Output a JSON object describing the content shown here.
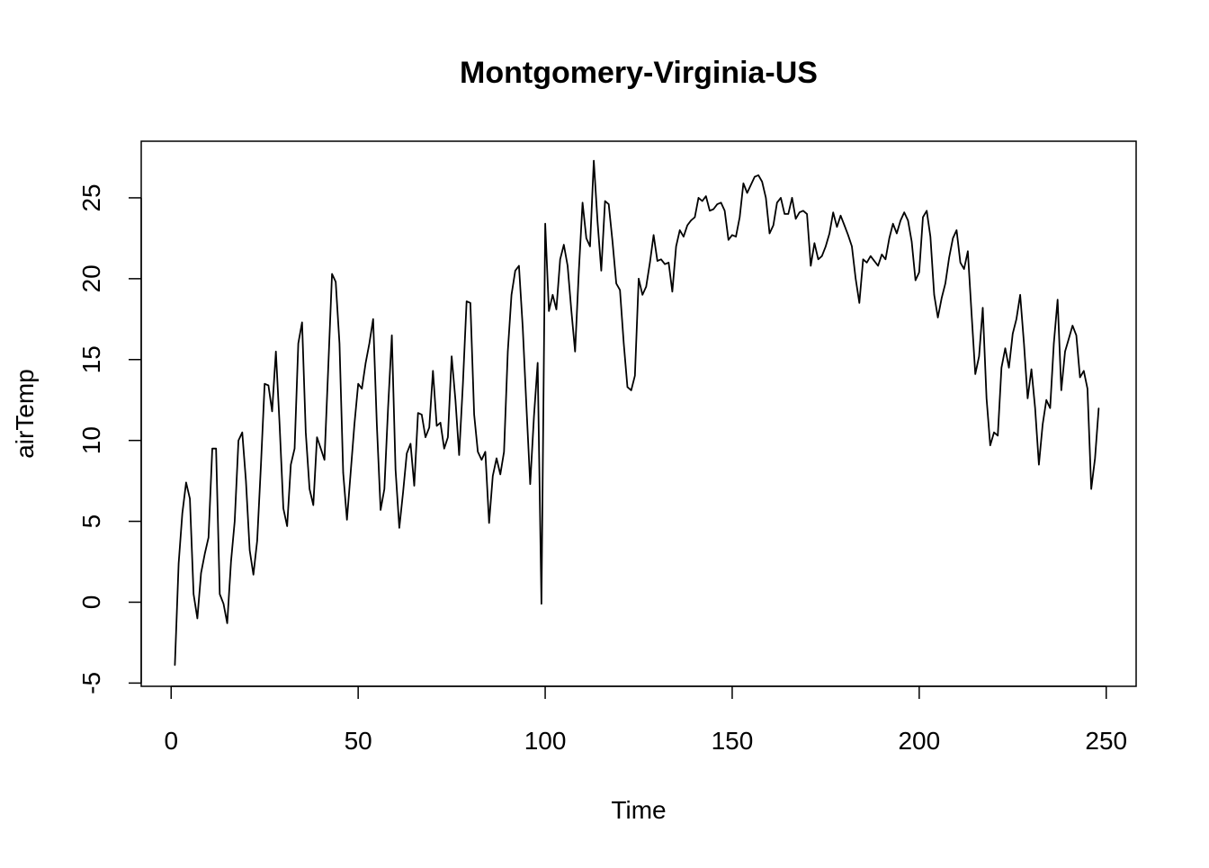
{
  "chart_data": {
    "type": "line",
    "title": "Montgomery-Virginia-US",
    "xlabel": "Time",
    "ylabel": "airTemp",
    "xlim": [
      -8,
      258
    ],
    "ylim": [
      -5.2,
      28.5
    ],
    "x_ticks": [
      0,
      50,
      100,
      150,
      200,
      250
    ],
    "y_ticks": [
      -5,
      0,
      5,
      10,
      15,
      20,
      25
    ],
    "x_tick_labels": [
      "0",
      "50",
      "100",
      "150",
      "200",
      "250"
    ],
    "y_tick_labels": [
      "-5",
      "0",
      "5",
      "10",
      "15",
      "20",
      "25"
    ],
    "grid": false,
    "legend": "none",
    "line_color": "#000000",
    "series": [
      {
        "x": [
          1,
          2,
          3,
          4,
          5,
          6,
          7,
          8,
          9,
          10,
          11,
          12,
          13,
          14,
          15,
          16,
          17,
          18,
          19,
          20,
          21,
          22,
          23,
          24,
          25,
          26,
          27,
          28,
          29,
          30,
          31,
          32,
          33,
          34,
          35,
          36,
          37,
          38,
          39,
          40,
          41,
          42,
          43,
          44,
          45,
          46,
          47,
          48,
          49,
          50,
          51,
          52,
          53,
          54,
          55,
          56,
          57,
          58,
          59,
          60,
          61,
          62,
          63,
          64,
          65,
          66,
          67,
          68,
          69,
          70,
          71,
          72,
          73,
          74,
          75,
          76,
          77,
          78,
          79,
          80,
          81,
          82,
          83,
          84,
          85,
          86,
          87,
          88,
          89,
          90,
          91,
          92,
          93,
          94,
          95,
          96,
          97,
          98,
          99,
          100,
          101,
          102,
          103,
          104,
          105,
          106,
          107,
          108,
          109,
          110,
          111,
          112,
          113,
          114,
          115,
          116,
          117,
          118,
          119,
          120,
          121,
          122,
          123,
          124,
          125,
          126,
          127,
          128,
          129,
          130,
          131,
          132,
          133,
          134,
          135,
          136,
          137,
          138,
          139,
          140,
          141,
          142,
          143,
          144,
          145,
          146,
          147,
          148,
          149,
          150,
          151,
          152,
          153,
          154,
          155,
          156,
          157,
          158,
          159,
          160,
          161,
          162,
          163,
          164,
          165,
          166,
          167,
          168,
          169,
          170,
          171,
          172,
          173,
          174,
          175,
          176,
          177,
          178,
          179,
          180,
          181,
          182,
          183,
          184,
          185,
          186,
          187,
          188,
          189,
          190,
          191,
          192,
          193,
          194,
          195,
          196,
          197,
          198,
          199,
          200,
          201,
          202,
          203,
          204,
          205,
          206,
          207,
          208,
          209,
          210,
          211,
          212,
          213,
          214,
          215,
          216,
          217,
          218,
          219,
          220,
          221,
          222,
          223,
          224,
          225,
          226,
          227,
          228,
          229,
          230,
          231,
          232,
          233,
          234,
          235,
          236,
          237,
          238,
          239,
          240,
          241,
          242,
          243,
          244,
          245,
          246,
          247,
          248
        ],
        "values": [
          -3.9,
          2.4,
          5.5,
          7.4,
          6.4,
          0.5,
          -1.0,
          1.8,
          3.0,
          4.0,
          9.5,
          9.5,
          0.5,
          -0.1,
          -1.3,
          2.5,
          5.0,
          10.0,
          10.5,
          7.5,
          3.2,
          1.7,
          3.8,
          8.5,
          13.5,
          13.4,
          11.8,
          15.5,
          11.0,
          5.8,
          4.7,
          8.5,
          9.5,
          16.0,
          17.3,
          10.5,
          7.0,
          6.0,
          10.2,
          9.5,
          8.8,
          14.5,
          20.3,
          19.8,
          16.0,
          8.0,
          5.1,
          8.0,
          11.0,
          13.5,
          13.2,
          14.8,
          16.0,
          17.5,
          11.0,
          5.7,
          7.0,
          12.0,
          16.5,
          8.2,
          4.6,
          6.8,
          9.2,
          9.8,
          7.2,
          11.7,
          11.6,
          10.2,
          10.8,
          14.3,
          10.9,
          11.1,
          9.5,
          10.2,
          15.2,
          12.5,
          9.1,
          13.5,
          18.6,
          18.5,
          11.6,
          9.3,
          8.8,
          9.3,
          4.9,
          7.8,
          8.9,
          7.9,
          9.3,
          15.5,
          19.0,
          20.5,
          20.8,
          17.0,
          12.0,
          7.3,
          11.5,
          14.8,
          -0.1,
          23.4,
          18.0,
          19.0,
          18.1,
          21.2,
          22.1,
          20.8,
          18.0,
          15.5,
          20.5,
          24.7,
          22.5,
          22.0,
          27.3,
          23.5,
          20.5,
          24.8,
          24.6,
          22.3,
          19.7,
          19.3,
          16.0,
          13.3,
          13.1,
          14.0,
          20.0,
          19.0,
          19.5,
          21.0,
          22.7,
          21.1,
          21.2,
          20.9,
          21.0,
          19.2,
          22.0,
          23.0,
          22.6,
          23.3,
          23.6,
          23.8,
          25.0,
          24.8,
          25.1,
          24.2,
          24.3,
          24.6,
          24.7,
          24.2,
          22.4,
          22.7,
          22.6,
          23.8,
          25.9,
          25.3,
          25.8,
          26.3,
          26.4,
          26.0,
          25.0,
          22.8,
          23.3,
          24.7,
          25.0,
          24.0,
          24.0,
          25.0,
          23.7,
          24.1,
          24.2,
          24.0,
          20.8,
          22.2,
          21.2,
          21.4,
          22.0,
          22.8,
          24.1,
          23.2,
          23.9,
          23.3,
          22.7,
          22.0,
          20.0,
          18.5,
          21.2,
          21.0,
          21.4,
          21.1,
          20.8,
          21.5,
          21.2,
          22.5,
          23.4,
          22.8,
          23.6,
          24.1,
          23.6,
          22.3,
          19.9,
          20.4,
          23.8,
          24.2,
          22.6,
          19.0,
          17.6,
          18.8,
          19.7,
          21.3,
          22.5,
          23.0,
          21.0,
          20.6,
          21.7,
          17.8,
          14.1,
          15.2,
          18.2,
          12.6,
          9.7,
          10.5,
          10.3,
          14.5,
          15.7,
          14.5,
          16.6,
          17.5,
          19.0,
          16.0,
          12.6,
          14.4,
          12.0,
          8.5,
          11.0,
          12.5,
          12.0,
          16.0,
          18.7,
          13.1,
          15.5,
          16.3,
          17.1,
          16.5,
          13.9,
          14.3,
          13.2,
          7.0,
          8.9,
          12.0
        ]
      }
    ]
  }
}
